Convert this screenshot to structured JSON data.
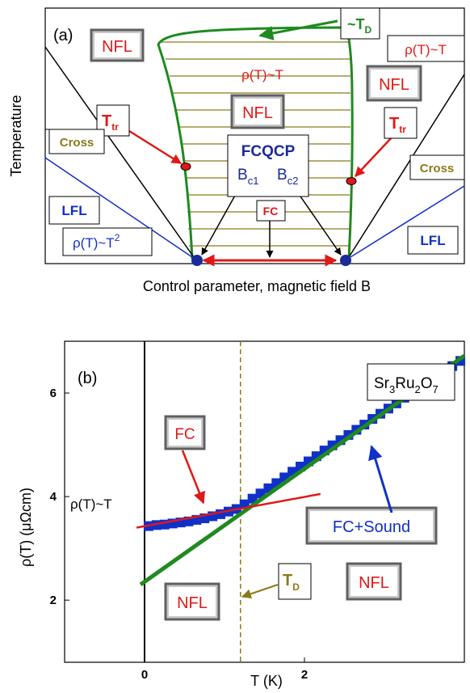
{
  "colors": {
    "green": "#1f8a1f",
    "olive": "#8a7a1a",
    "blue": "#1030c8",
    "red": "#e01818",
    "navy": "#1a2a9a",
    "black": "#000000",
    "gray": "#808080"
  },
  "chart_data": [
    {
      "type": "diagram",
      "panel_label": "(a)",
      "xlabel": "Control parameter, magnetic field B",
      "ylabel": "Temperature",
      "labels": {
        "td_top": "~T",
        "td_top_sub": "D",
        "nfl_left": "NFL",
        "nfl_center": "NFL",
        "nfl_right": "NFL",
        "rho_top": "ρ(T)~T",
        "rho_right": "ρ(T)~T",
        "ttr_left": "T",
        "ttr_left_sub": "tr",
        "ttr_right": "T",
        "ttr_right_sub": "tr",
        "cross_left": "Cross",
        "cross_right": "Cross",
        "fcqcp": "FCQCP",
        "bc1": "B",
        "bc1_sub": "c1",
        "bc2": "B",
        "bc2_sub": "c2",
        "fc": "FC",
        "lfl_left": "LFL",
        "lfl_right": "LFL",
        "rho_t2": "ρ(T)~T",
        "rho_t2_sup": "2"
      }
    },
    {
      "type": "scatter",
      "panel_label": "(b)",
      "compound": {
        "p1": "Sr",
        "s1": "3",
        "p2": "Ru",
        "s2": "2",
        "p3": "O",
        "s3": "7"
      },
      "xlabel": "T (K)",
      "ylabel_main": "ρ(T)  (μΩcm)",
      "xlim": [
        -1,
        4
      ],
      "ylim": [
        0.8,
        7
      ],
      "xticks": [
        0,
        2
      ],
      "yticks": [
        2,
        4,
        6
      ],
      "vline_x": 1.2,
      "zero_line_x": 0,
      "labels": {
        "fc": "FC",
        "rho_t": "ρ(T)~T",
        "fc_sound": "FC+Sound",
        "td": "T",
        "td_sub": "D",
        "nfl_left": "NFL",
        "nfl_right": "NFL"
      },
      "data_points": {
        "x": [
          0.05,
          0.15,
          0.25,
          0.35,
          0.45,
          0.55,
          0.65,
          0.75,
          0.85,
          0.95,
          1.05,
          1.15,
          1.25,
          1.35,
          1.45,
          1.55,
          1.65,
          1.75,
          1.85,
          1.95,
          2.05,
          2.15,
          2.25,
          2.35,
          2.45,
          2.55,
          2.65,
          2.75,
          2.85,
          2.95,
          3.05,
          3.15,
          3.25,
          3.35,
          3.45,
          3.55,
          3.65,
          3.75,
          3.85,
          3.95
        ],
        "y": [
          3.43,
          3.45,
          3.46,
          3.48,
          3.5,
          3.52,
          3.55,
          3.58,
          3.62,
          3.66,
          3.71,
          3.76,
          3.85,
          3.96,
          4.06,
          4.16,
          4.26,
          4.37,
          4.48,
          4.58,
          4.68,
          4.78,
          4.89,
          4.99,
          5.09,
          5.19,
          5.29,
          5.39,
          5.5,
          5.6,
          5.7,
          5.8,
          5.91,
          6.01,
          6.11,
          6.21,
          6.31,
          6.42,
          6.52,
          6.62
        ]
      },
      "fit_lines": [
        {
          "name": "FC",
          "x": [
            -0.1,
            2.2
          ],
          "y": [
            3.4,
            4.05
          ]
        },
        {
          "name": "FC+Sound",
          "x": [
            -0.05,
            4.0
          ],
          "y": [
            2.3,
            6.72
          ]
        }
      ]
    }
  ]
}
